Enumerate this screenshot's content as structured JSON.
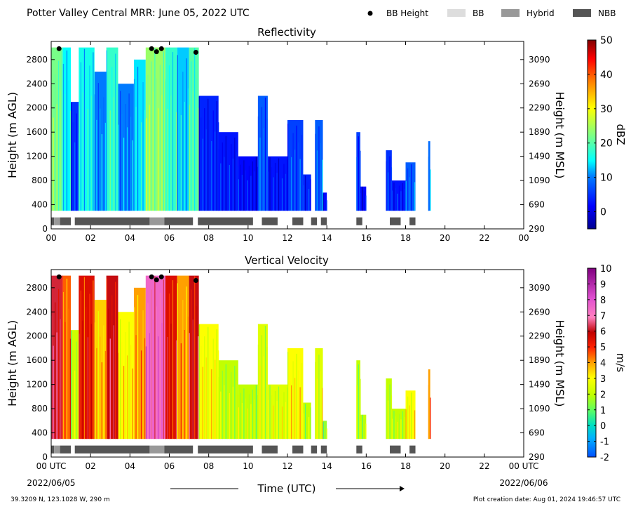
{
  "figure": {
    "title": "Potter Valley Central MRR:  June 05, 2022 UTC",
    "location": "39.3209 N, 123.1028 W, 290 m",
    "creation_date": "Plot creation date: Aug 01, 2024 19:46:57 UTC",
    "x_label": "Time (UTC)",
    "start_date": "2022/06/05",
    "end_date": "2022/06/06",
    "legend": [
      {
        "label": "BB Height",
        "kind": "marker",
        "color": "#000000"
      },
      {
        "label": "BB",
        "kind": "swatch",
        "color": "#dddddd"
      },
      {
        "label": "Hybrid",
        "kind": "swatch",
        "color": "#999999"
      },
      {
        "label": "NBB",
        "kind": "swatch",
        "color": "#555555"
      }
    ]
  },
  "chart_data": [
    {
      "type": "heatmap",
      "title": "Reflectivity",
      "ylabel": "Height (m AGL)",
      "y2label": "Height (m MSL)",
      "xlim": [
        0,
        24
      ],
      "ylim": [
        0,
        3100
      ],
      "x_ticks": [
        "00",
        "02",
        "04",
        "06",
        "08",
        "10",
        "12",
        "14",
        "16",
        "18",
        "20",
        "22",
        "00"
      ],
      "y_ticks": [
        0,
        400,
        800,
        1200,
        1600,
        2000,
        2400,
        2800
      ],
      "y2_ticks": [
        290,
        690,
        1090,
        1490,
        1890,
        2290,
        2690,
        3090
      ],
      "colorbar": {
        "label": "dBZ",
        "min": -5,
        "max": 50,
        "ticks": [
          0,
          10,
          20,
          30,
          40,
          50
        ]
      },
      "bb_height_points": [
        {
          "time": 0.4,
          "height": 2980
        },
        {
          "time": 5.1,
          "height": 2980
        },
        {
          "time": 5.35,
          "height": 2930
        },
        {
          "time": 5.6,
          "height": 2980
        },
        {
          "time": 7.35,
          "height": 2920
        }
      ],
      "bright_band_type": [
        {
          "start": 0.0,
          "end": 0.15,
          "type": "NBB"
        },
        {
          "start": 0.15,
          "end": 0.45,
          "type": "Hybrid"
        },
        {
          "start": 0.45,
          "end": 1.0,
          "type": "NBB"
        },
        {
          "start": 1.2,
          "end": 5.0,
          "type": "NBB"
        },
        {
          "start": 5.0,
          "end": 5.75,
          "type": "Hybrid"
        },
        {
          "start": 5.75,
          "end": 7.2,
          "type": "NBB"
        },
        {
          "start": 7.45,
          "end": 10.25,
          "type": "NBB"
        },
        {
          "start": 10.7,
          "end": 11.5,
          "type": "NBB"
        },
        {
          "start": 12.25,
          "end": 12.8,
          "type": "NBB"
        },
        {
          "start": 13.2,
          "end": 13.5,
          "type": "NBB"
        },
        {
          "start": 13.7,
          "end": 14.0,
          "type": "NBB"
        },
        {
          "start": 15.5,
          "end": 15.8,
          "type": "NBB"
        },
        {
          "start": 17.2,
          "end": 17.75,
          "type": "NBB"
        },
        {
          "start": 18.2,
          "end": 18.5,
          "type": "NBB"
        }
      ],
      "echo_columns": [
        {
          "start": 0.0,
          "end": 0.6,
          "top": 3000,
          "value": 22
        },
        {
          "start": 0.6,
          "end": 1.0,
          "top": 3000,
          "value": 15
        },
        {
          "start": 1.0,
          "end": 1.4,
          "top": 2100,
          "value": 5
        },
        {
          "start": 1.4,
          "end": 2.2,
          "top": 3000,
          "value": 16
        },
        {
          "start": 2.2,
          "end": 2.8,
          "top": 2600,
          "value": 10
        },
        {
          "start": 2.8,
          "end": 3.4,
          "top": 3000,
          "value": 18
        },
        {
          "start": 3.4,
          "end": 4.2,
          "top": 2400,
          "value": 10
        },
        {
          "start": 4.2,
          "end": 4.8,
          "top": 2800,
          "value": 14
        },
        {
          "start": 4.8,
          "end": 5.8,
          "top": 3000,
          "value": 24
        },
        {
          "start": 5.8,
          "end": 6.4,
          "top": 3000,
          "value": 18
        },
        {
          "start": 6.4,
          "end": 7.0,
          "top": 3000,
          "value": 13
        },
        {
          "start": 7.0,
          "end": 7.5,
          "top": 3000,
          "value": 20
        },
        {
          "start": 7.5,
          "end": 8.5,
          "top": 2200,
          "value": 4
        },
        {
          "start": 8.5,
          "end": 9.5,
          "top": 1600,
          "value": 3
        },
        {
          "start": 9.5,
          "end": 10.5,
          "top": 1200,
          "value": 2
        },
        {
          "start": 10.5,
          "end": 11.0,
          "top": 2200,
          "value": 8
        },
        {
          "start": 11.0,
          "end": 12.0,
          "top": 1200,
          "value": 3
        },
        {
          "start": 12.0,
          "end": 12.8,
          "top": 1800,
          "value": 6
        },
        {
          "start": 12.8,
          "end": 13.2,
          "top": 900,
          "value": 4
        },
        {
          "start": 13.4,
          "end": 13.8,
          "top": 1800,
          "value": 8
        },
        {
          "start": 13.8,
          "end": 14.0,
          "top": 600,
          "value": 2
        },
        {
          "start": 15.5,
          "end": 15.7,
          "top": 1600,
          "value": 6
        },
        {
          "start": 15.7,
          "end": 16.0,
          "top": 700,
          "value": 2
        },
        {
          "start": 17.0,
          "end": 17.3,
          "top": 1300,
          "value": 5
        },
        {
          "start": 17.3,
          "end": 18.0,
          "top": 800,
          "value": 3
        },
        {
          "start": 18.0,
          "end": 18.5,
          "top": 1100,
          "value": 8
        },
        {
          "start": 19.15,
          "end": 19.25,
          "top": 1450,
          "value": 9
        }
      ]
    },
    {
      "type": "heatmap",
      "title": "Vertical Velocity",
      "ylabel": "Height (m AGL)",
      "y2label": "Height (m MSL)",
      "xlim": [
        0,
        24
      ],
      "ylim": [
        0,
        3100
      ],
      "x_ticks": [
        "00 UTC",
        "02",
        "04",
        "06",
        "08",
        "10",
        "12",
        "14",
        "16",
        "18",
        "20",
        "22",
        "00 UTC"
      ],
      "y_ticks": [
        0,
        400,
        800,
        1200,
        1600,
        2000,
        2400,
        2800
      ],
      "y2_ticks": [
        290,
        690,
        1090,
        1490,
        1890,
        2290,
        2690,
        3090
      ],
      "colorbar": {
        "label": "m/s",
        "min": -2,
        "max": 10,
        "ticks": [
          -2,
          -1,
          0,
          1,
          2,
          3,
          4,
          5,
          6,
          7,
          8,
          9,
          10
        ]
      },
      "bb_height_points": [
        {
          "time": 0.4,
          "height": 2980
        },
        {
          "time": 5.1,
          "height": 2980
        },
        {
          "time": 5.35,
          "height": 2930
        },
        {
          "time": 5.6,
          "height": 2980
        },
        {
          "time": 7.35,
          "height": 2920
        }
      ],
      "bright_band_type": [
        {
          "start": 0.0,
          "end": 0.15,
          "type": "NBB"
        },
        {
          "start": 0.15,
          "end": 0.45,
          "type": "Hybrid"
        },
        {
          "start": 0.45,
          "end": 1.0,
          "type": "NBB"
        },
        {
          "start": 1.2,
          "end": 5.0,
          "type": "NBB"
        },
        {
          "start": 5.0,
          "end": 5.75,
          "type": "Hybrid"
        },
        {
          "start": 5.75,
          "end": 7.2,
          "type": "NBB"
        },
        {
          "start": 7.45,
          "end": 10.25,
          "type": "NBB"
        },
        {
          "start": 10.7,
          "end": 11.5,
          "type": "NBB"
        },
        {
          "start": 12.25,
          "end": 12.8,
          "type": "NBB"
        },
        {
          "start": 13.2,
          "end": 13.5,
          "type": "NBB"
        },
        {
          "start": 13.7,
          "end": 14.0,
          "type": "NBB"
        },
        {
          "start": 15.5,
          "end": 15.8,
          "type": "NBB"
        },
        {
          "start": 17.2,
          "end": 17.75,
          "type": "NBB"
        },
        {
          "start": 18.2,
          "end": 18.5,
          "type": "NBB"
        }
      ],
      "echo_columns": [
        {
          "start": 0.0,
          "end": 0.6,
          "top": 3000,
          "value": 6.2
        },
        {
          "start": 0.6,
          "end": 1.0,
          "top": 3000,
          "value": 4.5
        },
        {
          "start": 1.0,
          "end": 1.4,
          "top": 2100,
          "value": 2.2
        },
        {
          "start": 1.4,
          "end": 2.2,
          "top": 3000,
          "value": 5.5
        },
        {
          "start": 2.2,
          "end": 2.8,
          "top": 2600,
          "value": 3.5
        },
        {
          "start": 2.8,
          "end": 3.4,
          "top": 3000,
          "value": 6.0
        },
        {
          "start": 3.4,
          "end": 4.2,
          "top": 2400,
          "value": 3.0
        },
        {
          "start": 4.2,
          "end": 4.8,
          "top": 2800,
          "value": 4.0
        },
        {
          "start": 4.8,
          "end": 5.8,
          "top": 3000,
          "value": 7.5
        },
        {
          "start": 5.8,
          "end": 6.4,
          "top": 3000,
          "value": 5.5
        },
        {
          "start": 6.4,
          "end": 7.0,
          "top": 3000,
          "value": 4.0
        },
        {
          "start": 7.0,
          "end": 7.5,
          "top": 3000,
          "value": 6.0
        },
        {
          "start": 7.5,
          "end": 8.5,
          "top": 2200,
          "value": 3.0
        },
        {
          "start": 8.5,
          "end": 9.5,
          "top": 1600,
          "value": 2.0
        },
        {
          "start": 9.5,
          "end": 10.5,
          "top": 1200,
          "value": 2.0
        },
        {
          "start": 10.5,
          "end": 11.0,
          "top": 2200,
          "value": 2.5
        },
        {
          "start": 11.0,
          "end": 12.0,
          "top": 1200,
          "value": 2.5
        },
        {
          "start": 12.0,
          "end": 12.8,
          "top": 1800,
          "value": 3.0
        },
        {
          "start": 12.8,
          "end": 13.2,
          "top": 900,
          "value": 2.0
        },
        {
          "start": 13.4,
          "end": 13.8,
          "top": 1800,
          "value": 2.5
        },
        {
          "start": 13.8,
          "end": 14.0,
          "top": 600,
          "value": 1.5
        },
        {
          "start": 15.5,
          "end": 15.7,
          "top": 1600,
          "value": 2.0
        },
        {
          "start": 15.7,
          "end": 16.0,
          "top": 700,
          "value": 2.0
        },
        {
          "start": 17.0,
          "end": 17.3,
          "top": 1300,
          "value": 2.0
        },
        {
          "start": 17.3,
          "end": 18.0,
          "top": 800,
          "value": 2.0
        },
        {
          "start": 18.0,
          "end": 18.5,
          "top": 1100,
          "value": 3.0
        },
        {
          "start": 19.15,
          "end": 19.25,
          "top": 1450,
          "value": 4.0
        }
      ]
    }
  ]
}
